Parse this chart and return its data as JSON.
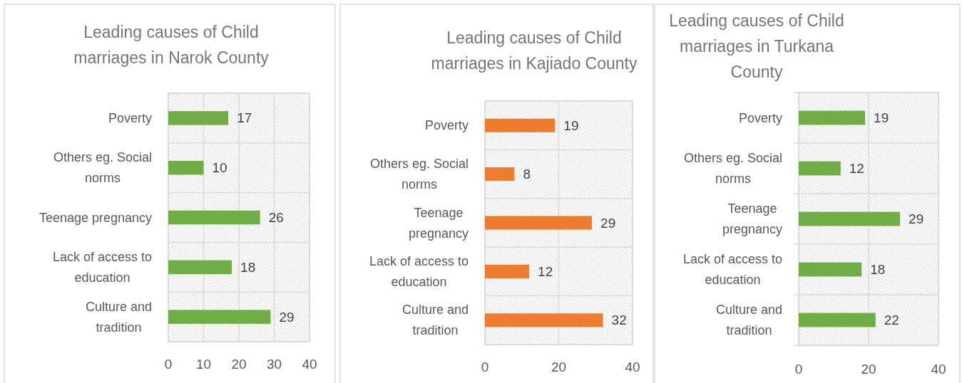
{
  "chart_data": [
    {
      "type": "bar",
      "orientation": "horizontal",
      "title": "Leading causes of Child marriages in Narok County",
      "categories": [
        "Poverty",
        "Others eg. Social norms",
        "Teenage pregnancy",
        "Lack of access to education",
        "Culture and tradition"
      ],
      "values": [
        17,
        10,
        26,
        18,
        29
      ],
      "color": "#70ad47",
      "xlim": [
        0,
        40
      ],
      "xticks": [
        0,
        10,
        20,
        30,
        40
      ],
      "grid": true,
      "data_labels": true
    },
    {
      "type": "bar",
      "orientation": "horizontal",
      "title": "Leading causes of Child marriages in Kajiado County",
      "categories": [
        "Poverty",
        "Others eg. Social norms",
        "Teenage pregnancy",
        "Lack of access to education",
        "Culture and tradition"
      ],
      "values": [
        19,
        8,
        29,
        12,
        32
      ],
      "color": "#ed7d31",
      "xlim": [
        0,
        40
      ],
      "xticks": [
        0,
        20,
        40
      ],
      "grid": true,
      "data_labels": true
    },
    {
      "type": "bar",
      "orientation": "horizontal",
      "title": "Leading causes of Child marriages in Turkana County",
      "categories": [
        "Poverty",
        "Others eg. Social norms",
        "Teenage pregnancy",
        "Lack of access to education",
        "Culture and tradition"
      ],
      "values": [
        19,
        12,
        29,
        18,
        22
      ],
      "color": "#70ad47",
      "xlim": [
        0,
        40
      ],
      "xticks": [
        0,
        20,
        40
      ],
      "grid": true,
      "data_labels": true
    }
  ]
}
